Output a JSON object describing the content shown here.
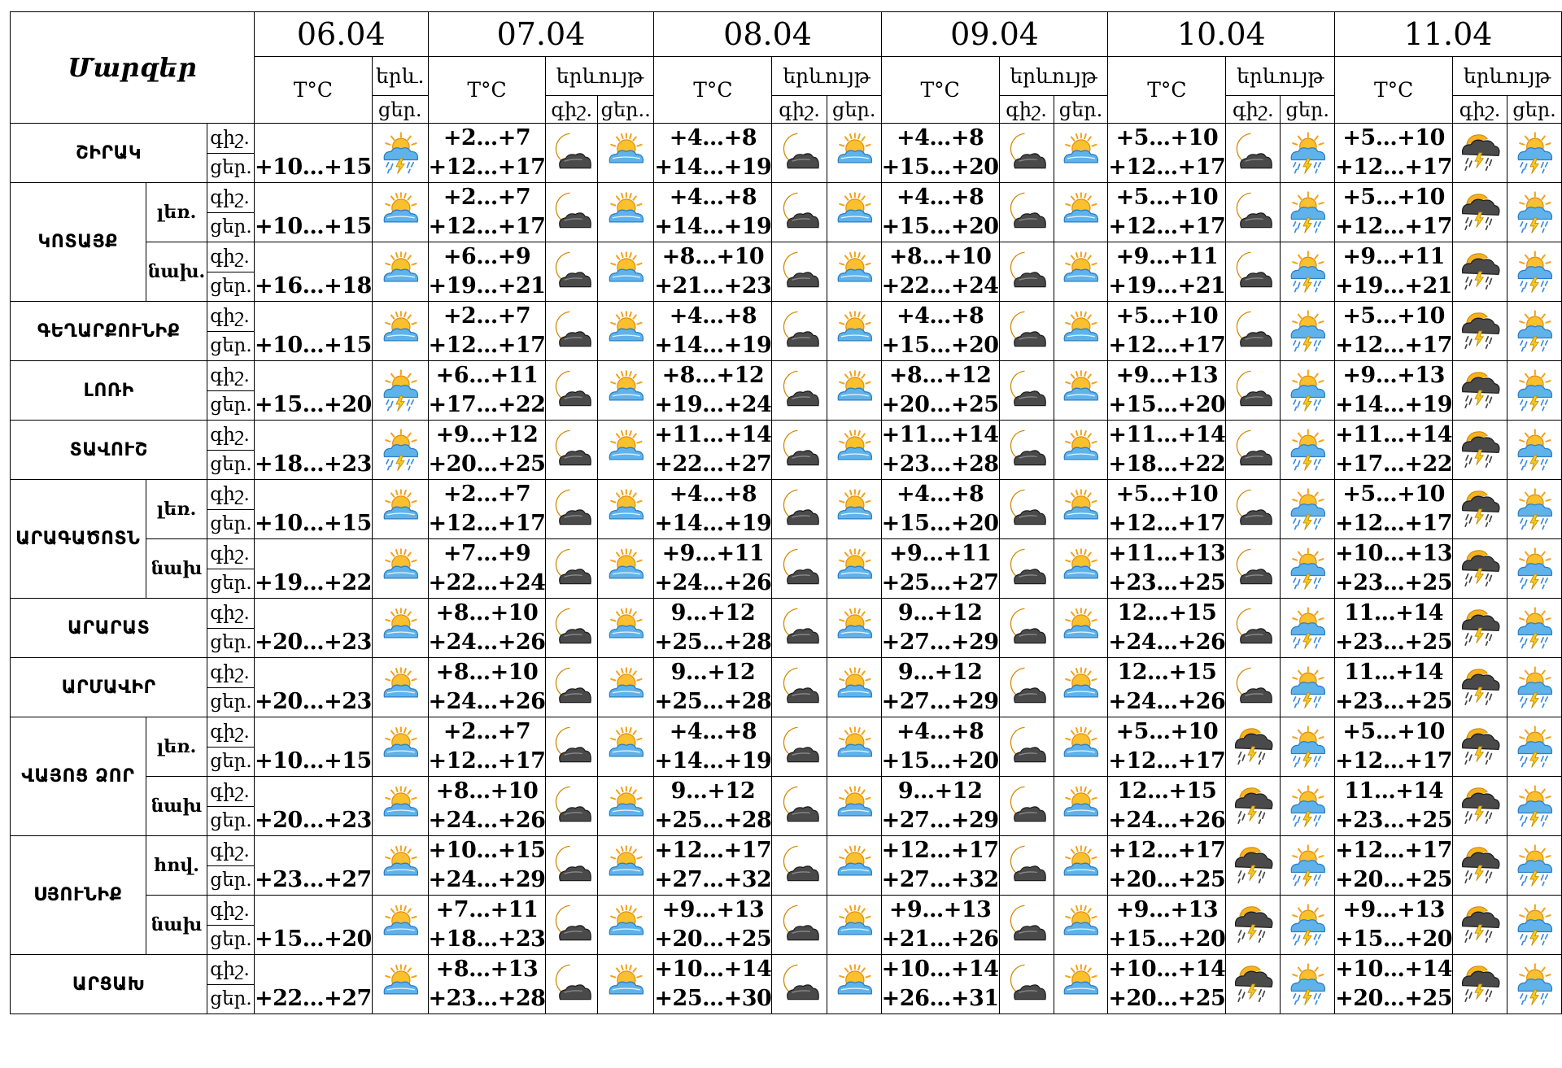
{
  "header": {
    "regions_title": "Մարզեր",
    "temp_label": "T°C",
    "phenom_label": "երևույթ",
    "phenom_label_short": "երև.",
    "night_short": "գիշ.",
    "day_short": "ցեր.",
    "day_short_first": "ցեր..",
    "dates": [
      "06.04",
      "07.04",
      "08.04",
      "09.04",
      "10.04",
      "11.04"
    ]
  },
  "groups": [
    {
      "name": "ՇԻՐԱԿ",
      "subs": [
        {
          "label": "",
          "first": {
            "day": "+10…+15",
            "icon": "sun-cloud-storm-icon"
          },
          "days": [
            {
              "night": "+2…+7",
              "day": "+12…+17",
              "night_icon": "moon-cloud-icon",
              "day_icon": "sun-cloud-icon"
            },
            {
              "night": "+4…+8",
              "day": "+14…+19",
              "night_icon": "moon-cloud-icon",
              "day_icon": "sun-cloud-icon"
            },
            {
              "night": "+4…+8",
              "day": "+15…+20",
              "night_icon": "moon-cloud-icon",
              "day_icon": "sun-cloud-icon"
            },
            {
              "night": "+5…+10",
              "day": "+12…+17",
              "night_icon": "moon-cloud-icon",
              "day_icon": "sun-cloud-storm-icon"
            },
            {
              "night": "+5…+10",
              "day": "+12…+17",
              "night_icon": "thunderstorm-icon",
              "day_icon": "sun-cloud-storm-icon"
            }
          ]
        }
      ]
    },
    {
      "name": "ԿՈՏԱՅՔ",
      "subs": [
        {
          "label": "լեռ.",
          "first": {
            "day": "+10…+15",
            "icon": "sun-cloud-icon"
          },
          "days": [
            {
              "night": "+2…+7",
              "day": "+12…+17",
              "night_icon": "moon-cloud-icon",
              "day_icon": "sun-cloud-icon"
            },
            {
              "night": "+4…+8",
              "day": "+14…+19",
              "night_icon": "moon-cloud-icon",
              "day_icon": "sun-cloud-icon"
            },
            {
              "night": "+4…+8",
              "day": "+15…+20",
              "night_icon": "moon-cloud-icon",
              "day_icon": "sun-cloud-icon"
            },
            {
              "night": "+5…+10",
              "day": "+12…+17",
              "night_icon": "moon-cloud-icon",
              "day_icon": "sun-cloud-storm-icon"
            },
            {
              "night": "+5…+10",
              "day": "+12…+17",
              "night_icon": "thunderstorm-icon",
              "day_icon": "sun-cloud-storm-icon"
            }
          ]
        },
        {
          "label": "նախ.",
          "first": {
            "day": "+16…+18",
            "icon": "sun-cloud-icon"
          },
          "days": [
            {
              "night": "+6…+9",
              "day": "+19…+21",
              "night_icon": "moon-cloud-icon",
              "day_icon": "sun-cloud-icon"
            },
            {
              "night": "+8…+10",
              "day": "+21…+23",
              "night_icon": "moon-cloud-icon",
              "day_icon": "sun-cloud-icon"
            },
            {
              "night": "+8…+10",
              "day": "+22…+24",
              "night_icon": "moon-cloud-icon",
              "day_icon": "sun-cloud-icon"
            },
            {
              "night": "+9…+11",
              "day": "+19…+21",
              "night_icon": "moon-cloud-icon",
              "day_icon": "sun-cloud-storm-icon"
            },
            {
              "night": "+9…+11",
              "day": "+19…+21",
              "night_icon": "thunderstorm-icon",
              "day_icon": "sun-cloud-storm-icon"
            }
          ]
        }
      ]
    },
    {
      "name": "ԳԵՂԱՐՔՈՒՆԻՔ",
      "subs": [
        {
          "label": "",
          "first": {
            "day": "+10…+15",
            "icon": "sun-cloud-icon"
          },
          "days": [
            {
              "night": "+2…+7",
              "day": "+12…+17",
              "night_icon": "moon-cloud-icon",
              "day_icon": "sun-cloud-icon"
            },
            {
              "night": "+4…+8",
              "day": "+14…+19",
              "night_icon": "moon-cloud-icon",
              "day_icon": "sun-cloud-icon"
            },
            {
              "night": "+4…+8",
              "day": "+15…+20",
              "night_icon": "moon-cloud-icon",
              "day_icon": "sun-cloud-icon"
            },
            {
              "night": "+5…+10",
              "day": "+12…+17",
              "night_icon": "moon-cloud-icon",
              "day_icon": "sun-cloud-storm-icon"
            },
            {
              "night": "+5…+10",
              "day": "+12…+17",
              "night_icon": "thunderstorm-icon",
              "day_icon": "sun-cloud-storm-icon"
            }
          ]
        }
      ]
    },
    {
      "name": "ԼՈՌԻ",
      "subs": [
        {
          "label": "",
          "first": {
            "day": "+15…+20",
            "icon": "sun-cloud-storm-icon"
          },
          "days": [
            {
              "night": "+6…+11",
              "day": "+17…+22",
              "night_icon": "moon-cloud-icon",
              "day_icon": "sun-cloud-icon"
            },
            {
              "night": "+8…+12",
              "day": "+19…+24",
              "night_icon": "moon-cloud-icon",
              "day_icon": "sun-cloud-icon"
            },
            {
              "night": "+8…+12",
              "day": "+20…+25",
              "night_icon": "moon-cloud-icon",
              "day_icon": "sun-cloud-icon"
            },
            {
              "night": "+9…+13",
              "day": "+15…+20",
              "night_icon": "moon-cloud-icon",
              "day_icon": "sun-cloud-storm-icon"
            },
            {
              "night": "+9…+13",
              "day": "+14…+19",
              "night_icon": "thunderstorm-icon",
              "day_icon": "sun-cloud-storm-icon"
            }
          ]
        }
      ]
    },
    {
      "name": "ՏԱՎՈՒՇ",
      "subs": [
        {
          "label": "",
          "first": {
            "day": "+18…+23",
            "icon": "sun-cloud-storm-icon"
          },
          "days": [
            {
              "night": "+9…+12",
              "day": "+20…+25",
              "night_icon": "moon-cloud-icon",
              "day_icon": "sun-cloud-icon"
            },
            {
              "night": "+11…+14",
              "day": "+22…+27",
              "night_icon": "moon-cloud-icon",
              "day_icon": "sun-cloud-icon"
            },
            {
              "night": "+11…+14",
              "day": "+23…+28",
              "night_icon": "moon-cloud-icon",
              "day_icon": "sun-cloud-icon"
            },
            {
              "night": "+11…+14",
              "day": "+18…+22",
              "night_icon": "moon-cloud-icon",
              "day_icon": "sun-cloud-storm-icon"
            },
            {
              "night": "+11…+14",
              "day": "+17…+22",
              "night_icon": "thunderstorm-icon",
              "day_icon": "sun-cloud-storm-icon"
            }
          ]
        }
      ]
    },
    {
      "name": "ԱՐԱԳԱԾՈՏՆ",
      "subs": [
        {
          "label": "լեռ.",
          "first": {
            "day": "+10…+15",
            "icon": "sun-cloud-icon"
          },
          "days": [
            {
              "night": "+2…+7",
              "day": "+12…+17",
              "night_icon": "moon-cloud-icon",
              "day_icon": "sun-cloud-icon"
            },
            {
              "night": "+4…+8",
              "day": "+14…+19",
              "night_icon": "moon-cloud-icon",
              "day_icon": "sun-cloud-icon"
            },
            {
              "night": "+4…+8",
              "day": "+15…+20",
              "night_icon": "moon-cloud-icon",
              "day_icon": "sun-cloud-icon"
            },
            {
              "night": "+5…+10",
              "day": "+12…+17",
              "night_icon": "moon-cloud-icon",
              "day_icon": "sun-cloud-storm-icon"
            },
            {
              "night": "+5…+10",
              "day": "+12…+17",
              "night_icon": "thunderstorm-icon",
              "day_icon": "sun-cloud-storm-icon"
            }
          ]
        },
        {
          "label": "նախ",
          "first": {
            "day": "+19…+22",
            "icon": "sun-cloud-icon"
          },
          "days": [
            {
              "night": "+7…+9",
              "day": "+22…+24",
              "night_icon": "moon-cloud-icon",
              "day_icon": "sun-cloud-icon"
            },
            {
              "night": "+9…+11",
              "day": "+24…+26",
              "night_icon": "moon-cloud-icon",
              "day_icon": "sun-cloud-icon"
            },
            {
              "night": "+9…+11",
              "day": "+25…+27",
              "night_icon": "moon-cloud-icon",
              "day_icon": "sun-cloud-icon"
            },
            {
              "night": "+11…+13",
              "day": "+23…+25",
              "night_icon": "moon-cloud-icon",
              "day_icon": "sun-cloud-storm-icon"
            },
            {
              "night": "+10…+13",
              "day": "+23…+25",
              "night_icon": "thunderstorm-icon",
              "day_icon": "sun-cloud-storm-icon"
            }
          ]
        }
      ]
    },
    {
      "name": "ԱՐԱՐԱՏ",
      "subs": [
        {
          "label": "",
          "first": {
            "day": "+20…+23",
            "icon": "sun-cloud-icon"
          },
          "days": [
            {
              "night": "+8…+10",
              "day": "+24…+26",
              "night_icon": "moon-cloud-icon",
              "day_icon": "sun-cloud-icon"
            },
            {
              "night": "9…+12",
              "day": "+25…+28",
              "night_icon": "moon-cloud-icon",
              "day_icon": "sun-cloud-icon"
            },
            {
              "night": "9…+12",
              "day": "+27…+29",
              "night_icon": "moon-cloud-icon",
              "day_icon": "sun-cloud-icon"
            },
            {
              "night": "12…+15",
              "day": "+24…+26",
              "night_icon": "moon-cloud-icon",
              "day_icon": "sun-cloud-storm-icon"
            },
            {
              "night": "11…+14",
              "day": "+23…+25",
              "night_icon": "thunderstorm-icon",
              "day_icon": "sun-cloud-storm-icon"
            }
          ]
        }
      ]
    },
    {
      "name": "ԱՐՄԱՎԻՐ",
      "subs": [
        {
          "label": "",
          "first": {
            "day": "+20…+23",
            "icon": "sun-cloud-icon"
          },
          "days": [
            {
              "night": "+8…+10",
              "day": "+24…+26",
              "night_icon": "moon-cloud-icon",
              "day_icon": "sun-cloud-icon"
            },
            {
              "night": "9…+12",
              "day": "+25…+28",
              "night_icon": "moon-cloud-icon",
              "day_icon": "sun-cloud-icon"
            },
            {
              "night": "9…+12",
              "day": "+27…+29",
              "night_icon": "moon-cloud-icon",
              "day_icon": "sun-cloud-icon"
            },
            {
              "night": "12…+15",
              "day": "+24…+26",
              "night_icon": "moon-cloud-icon",
              "day_icon": "sun-cloud-storm-icon"
            },
            {
              "night": "11…+14",
              "day": "+23…+25",
              "night_icon": "thunderstorm-icon",
              "day_icon": "sun-cloud-storm-icon"
            }
          ]
        }
      ]
    },
    {
      "name": "ՎԱՅՈՑ ՁՈՐ",
      "subs": [
        {
          "label": "լեռ.",
          "first": {
            "day": "+10…+15",
            "icon": "sun-cloud-icon"
          },
          "days": [
            {
              "night": "+2…+7",
              "day": "+12…+17",
              "night_icon": "moon-cloud-icon",
              "day_icon": "sun-cloud-icon"
            },
            {
              "night": "+4…+8",
              "day": "+14…+19",
              "night_icon": "moon-cloud-icon",
              "day_icon": "sun-cloud-icon"
            },
            {
              "night": "+4…+8",
              "day": "+15…+20",
              "night_icon": "moon-cloud-icon",
              "day_icon": "sun-cloud-icon"
            },
            {
              "night": "+5…+10",
              "day": "+12…+17",
              "night_icon": "thunderstorm-icon",
              "day_icon": "sun-cloud-storm-icon"
            },
            {
              "night": "+5…+10",
              "day": "+12…+17",
              "night_icon": "thunderstorm-icon",
              "day_icon": "sun-cloud-storm-icon"
            }
          ]
        },
        {
          "label": "նախ",
          "first": {
            "day": "+20…+23",
            "icon": "sun-cloud-icon"
          },
          "days": [
            {
              "night": "+8…+10",
              "day": "+24…+26",
              "night_icon": "moon-cloud-icon",
              "day_icon": "sun-cloud-icon"
            },
            {
              "night": "9…+12",
              "day": "+25…+28",
              "night_icon": "moon-cloud-icon",
              "day_icon": "sun-cloud-icon"
            },
            {
              "night": "9…+12",
              "day": "+27…+29",
              "night_icon": "moon-cloud-icon",
              "day_icon": "sun-cloud-icon"
            },
            {
              "night": "12…+15",
              "day": "+24…+26",
              "night_icon": "thunderstorm-icon",
              "day_icon": "sun-cloud-storm-icon"
            },
            {
              "night": "11…+14",
              "day": "+23…+25",
              "night_icon": "thunderstorm-icon",
              "day_icon": "sun-cloud-storm-icon"
            }
          ]
        }
      ]
    },
    {
      "name": "ՍՅՈՒՆԻՔ",
      "subs": [
        {
          "label": "հով.",
          "first": {
            "day": "+23…+27",
            "icon": "sun-cloud-icon"
          },
          "days": [
            {
              "night": "+10…+15",
              "day": "+24…+29",
              "night_icon": "moon-cloud-icon",
              "day_icon": "sun-cloud-icon"
            },
            {
              "night": "+12…+17",
              "day": "+27…+32",
              "night_icon": "moon-cloud-icon",
              "day_icon": "sun-cloud-icon"
            },
            {
              "night": "+12…+17",
              "day": "+27…+32",
              "night_icon": "moon-cloud-icon",
              "day_icon": "sun-cloud-icon"
            },
            {
              "night": "+12…+17",
              "day": "+20…+25",
              "night_icon": "thunderstorm-icon",
              "day_icon": "sun-cloud-storm-icon"
            },
            {
              "night": "+12…+17",
              "day": "+20…+25",
              "night_icon": "thunderstorm-icon",
              "day_icon": "sun-cloud-storm-icon"
            }
          ]
        },
        {
          "label": "նախ",
          "first": {
            "day": "+15…+20",
            "icon": "sun-cloud-icon"
          },
          "days": [
            {
              "night": "+7…+11",
              "day": "+18…+23",
              "night_icon": "moon-cloud-icon",
              "day_icon": "sun-cloud-icon"
            },
            {
              "night": "+9…+13",
              "day": "+20…+25",
              "night_icon": "moon-cloud-icon",
              "day_icon": "sun-cloud-icon"
            },
            {
              "night": "+9…+13",
              "day": "+21…+26",
              "night_icon": "moon-cloud-icon",
              "day_icon": "sun-cloud-icon"
            },
            {
              "night": "+9…+13",
              "day": "+15…+20",
              "night_icon": "thunderstorm-icon",
              "day_icon": "sun-cloud-storm-icon"
            },
            {
              "night": "+9…+13",
              "day": "+15…+20",
              "night_icon": "thunderstorm-icon",
              "day_icon": "sun-cloud-storm-icon"
            }
          ]
        }
      ]
    },
    {
      "name": "ԱՐՑԱԽ",
      "subs": [
        {
          "label": "",
          "first": {
            "day": "+22…+27",
            "icon": "sun-cloud-icon"
          },
          "days": [
            {
              "night": "+8…+13",
              "day": "+23…+28",
              "night_icon": "moon-cloud-icon",
              "day_icon": "sun-cloud-icon"
            },
            {
              "night": "+10…+14",
              "day": "+25…+30",
              "night_icon": "moon-cloud-icon",
              "day_icon": "sun-cloud-icon"
            },
            {
              "night": "+10…+14",
              "day": "+26…+31",
              "night_icon": "moon-cloud-icon",
              "day_icon": "sun-cloud-icon"
            },
            {
              "night": "+10…+14",
              "day": "+20…+25",
              "night_icon": "thunderstorm-icon",
              "day_icon": "sun-cloud-storm-icon"
            },
            {
              "night": "+10…+14",
              "day": "+20…+25",
              "night_icon": "thunderstorm-icon",
              "day_icon": "sun-cloud-storm-icon"
            }
          ]
        }
      ]
    }
  ]
}
